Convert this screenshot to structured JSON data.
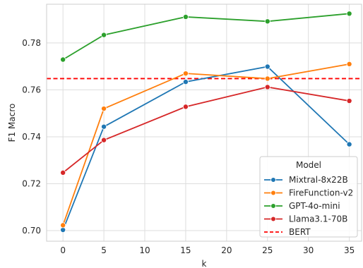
{
  "chart_data": {
    "type": "line",
    "title": "",
    "xlabel": "k",
    "ylabel": "F1 Macro",
    "x": [
      0,
      5,
      15,
      25,
      35
    ],
    "xlim": [
      -2,
      36.5
    ],
    "ylim": [
      0.6955,
      0.7965
    ],
    "xticks": [
      0,
      5,
      10,
      15,
      20,
      25,
      30,
      35
    ],
    "yticks": [
      0.7,
      0.72,
      0.74,
      0.76,
      0.78
    ],
    "ytick_labels": [
      "0.70",
      "0.72",
      "0.74",
      "0.76",
      "0.78"
    ],
    "grid": true,
    "legend": {
      "title": "Model",
      "placement": "lower-right"
    },
    "series": [
      {
        "name": "Mixtral-8x22B",
        "color": "#1f77b4",
        "values": [
          0.7003,
          0.7443,
          0.7634,
          0.7699,
          0.7368
        ]
      },
      {
        "name": "FireFunction-v2",
        "color": "#ff7f0e",
        "values": [
          0.7023,
          0.752,
          0.767,
          0.7648,
          0.771
        ]
      },
      {
        "name": "GPT-4o-mini",
        "color": "#2ca02c",
        "values": [
          0.7729,
          0.7834,
          0.7911,
          0.7892,
          0.7925
        ]
      },
      {
        "name": "Llama3.1-70B",
        "color": "#d62728",
        "values": [
          0.7247,
          0.7386,
          0.7528,
          0.7612,
          0.7553
        ]
      }
    ],
    "reference_lines": [
      {
        "name": "BERT",
        "color": "#ff0000",
        "y": 0.7648,
        "style": "dashed"
      }
    ]
  }
}
